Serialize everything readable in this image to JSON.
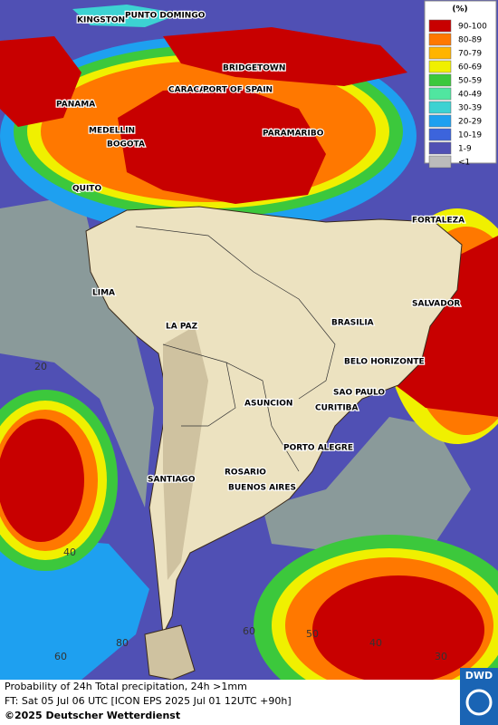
{
  "legend": {
    "title": "(%)",
    "items": [
      {
        "label": "90-100",
        "color": "#c80000"
      },
      {
        "label": "80-89",
        "color": "#ff7800"
      },
      {
        "label": "70-79",
        "color": "#ffb400"
      },
      {
        "label": "60-69",
        "color": "#f0f000"
      },
      {
        "label": "50-59",
        "color": "#3cc83c"
      },
      {
        "label": "40-49",
        "color": "#50e6a0"
      },
      {
        "label": "30-39",
        "color": "#3cd2d2"
      },
      {
        "label": "20-29",
        "color": "#1ea0f0"
      },
      {
        "label": "10-19",
        "color": "#3c64dc"
      },
      {
        "label": "1-9",
        "color": "#5050b4"
      },
      {
        "label": "<1",
        "color": "#bbbbbb"
      }
    ]
  },
  "cities": [
    "KINGSTON",
    "PUNTO DOMINGO",
    "BRIDGETOWN",
    "CARACAS",
    "PORT OF SPAIN",
    "PANAMA",
    "MEDELLIN",
    "BOGOTA",
    "PARAMARIBO",
    "QUITO",
    "FORTALEZA",
    "LIMA",
    "SALVADOR",
    "LA PAZ",
    "BRASILIA",
    "BELO HORIZONTE",
    "SAO PAULO",
    "ASUNCION",
    "CURITIBA",
    "PORTO ALEGRE",
    "ROSARIO",
    "SANTIAGO",
    "BUENOS AIRES"
  ],
  "grid_labels": [
    "20",
    "40",
    "60",
    "80",
    "60",
    "50",
    "40",
    "30"
  ],
  "footer": {
    "line1": "Probability of 24h Total precipitation, 24h >1mm",
    "line2": "FT: Sat 05 Jul 06 UTC [ICON EPS 2025 Jul 01 12UTC +90h]",
    "copyright": "©2025 Deutscher Wetterdienst",
    "logo": "DWD"
  }
}
